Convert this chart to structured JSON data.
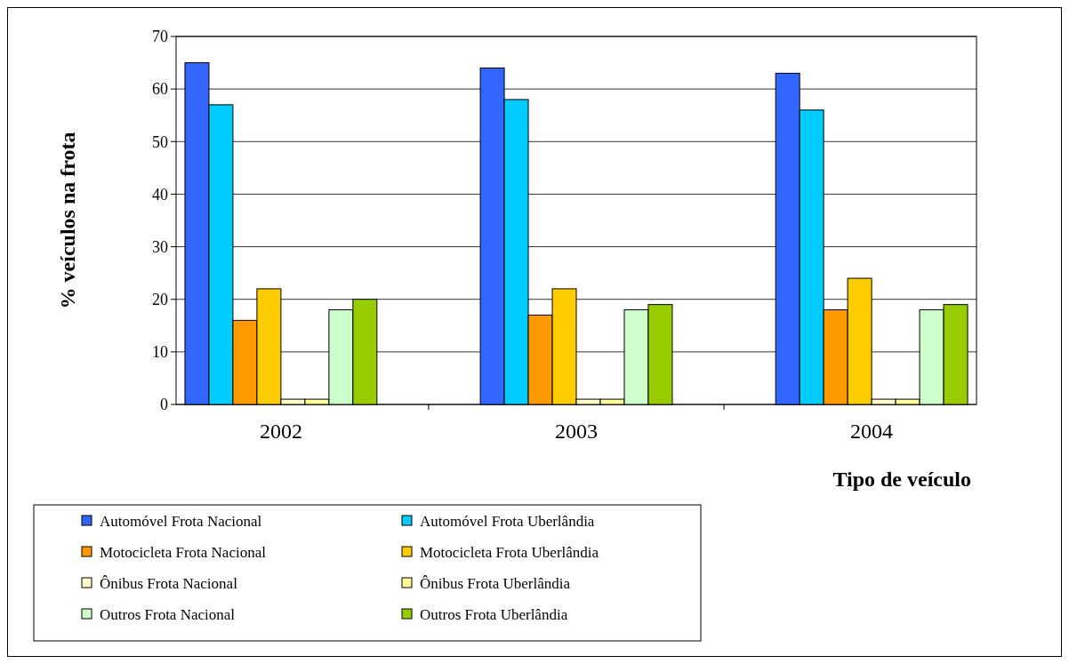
{
  "chart_data": {
    "type": "bar",
    "xlabel": "Tipo de veículo",
    "ylabel": "% veículos na frota",
    "categories": [
      "2002",
      "2003",
      "2004"
    ],
    "series": [
      {
        "name": "Automóvel Frota Nacional",
        "color": "#3366ff",
        "values": [
          65,
          64,
          63
        ]
      },
      {
        "name": "Automóvel Frota Uberlândia",
        "color": "#00ccff",
        "values": [
          57,
          58,
          56
        ]
      },
      {
        "name": "Motocicleta Frota Nacional",
        "color": "#ff9900",
        "values": [
          16,
          17,
          18
        ]
      },
      {
        "name": "Motocicleta Frota Uberlândia",
        "color": "#ffcc00",
        "values": [
          22,
          22,
          24
        ]
      },
      {
        "name": "Ônibus Frota Nacional",
        "color": "#ffffcc",
        "values": [
          1,
          1,
          1
        ]
      },
      {
        "name": "Ônibus Frota Uberlândia",
        "color": "#ffff99",
        "values": [
          1,
          1,
          1
        ]
      },
      {
        "name": "Outros Frota Nacional",
        "color": "#ccffcc",
        "values": [
          18,
          18,
          18
        ]
      },
      {
        "name": "Outros Frota Uberlândia",
        "color": "#99cc00",
        "values": [
          20,
          19,
          19
        ]
      }
    ],
    "ylim": [
      0,
      70
    ],
    "yticks": [
      0,
      10,
      20,
      30,
      40,
      50,
      60,
      70
    ],
    "grid": "y",
    "legend": "bottom"
  }
}
